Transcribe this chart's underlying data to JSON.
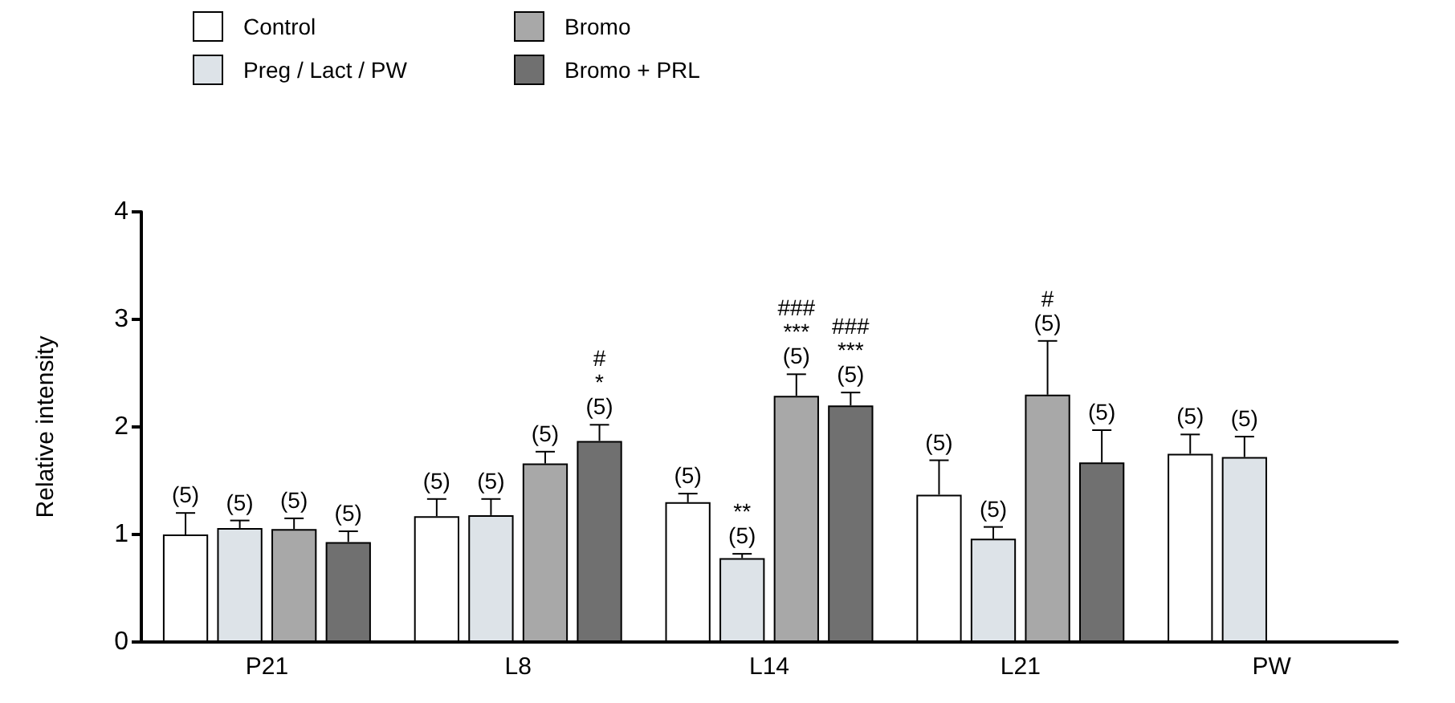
{
  "chart_data": {
    "type": "bar",
    "ylabel": "Relative intensity",
    "categories": [
      "P21",
      "L8",
      "L14",
      "L21",
      "PW"
    ],
    "series": [
      {
        "name": "Control",
        "color": "#ffffff",
        "values": [
          1.0,
          1.17,
          1.3,
          1.37,
          1.75
        ],
        "errors": [
          [
            1.0,
            1.2
          ],
          [
            1.17,
            1.33
          ],
          [
            1.3,
            1.38
          ],
          [
            1.37,
            1.69
          ],
          [
            1.75,
            1.93
          ]
        ]
      },
      {
        "name": "Preg / Lact / PW",
        "color": "#dde3e8",
        "values": [
          1.06,
          1.18,
          0.78,
          0.96,
          1.72
        ],
        "errors": [
          [
            1.06,
            1.13
          ],
          [
            1.18,
            1.33
          ],
          [
            0.78,
            0.82
          ],
          [
            0.96,
            1.07
          ],
          [
            1.72,
            1.91
          ]
        ]
      },
      {
        "name": "Bromo",
        "color": "#a8a8a8",
        "values": [
          1.05,
          1.66,
          2.29,
          2.3,
          null
        ],
        "errors": [
          [
            1.05,
            1.15
          ],
          [
            1.66,
            1.77
          ],
          [
            2.29,
            2.49
          ],
          [
            2.3,
            2.8
          ],
          null
        ]
      },
      {
        "name": "Bromo + PRL",
        "color": "#707070",
        "values": [
          0.93,
          1.87,
          2.2,
          1.67,
          null
        ],
        "errors": [
          [
            0.93,
            1.03
          ],
          [
            1.87,
            2.02
          ],
          [
            2.2,
            2.32
          ],
          [
            1.67,
            1.97
          ],
          null
        ]
      }
    ],
    "annotations": [
      "(5)",
      "(5)",
      "(5)",
      "(5)",
      "(5)",
      "(5)",
      "(5)",
      "#\n*\n(5)",
      "(5)",
      "**\n(5)",
      "###\n***\n(5)",
      "###\n***\n(5)",
      "(5)",
      "(5)",
      "#\n(5)",
      "(5)",
      "(5)",
      "(5)"
    ],
    "ylim": [
      0,
      4
    ],
    "yticks": [
      0,
      1,
      2,
      3,
      4
    ],
    "grid": false,
    "legend": "top left"
  }
}
